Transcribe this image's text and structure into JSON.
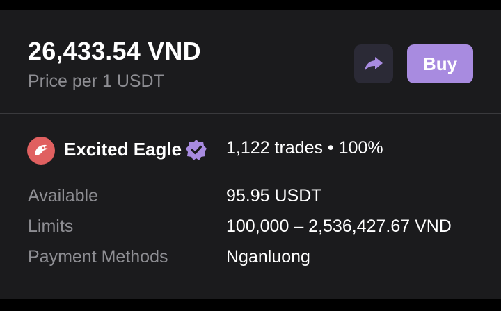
{
  "offer": {
    "price": "26,433.54 VND",
    "price_caption": "Price per 1 USDT",
    "buy_label": "Buy"
  },
  "merchant": {
    "name": "Excited Eagle",
    "stats": "1,122 trades • 100%"
  },
  "details": [
    {
      "label": "Available",
      "value": "95.95 USDT"
    },
    {
      "label": "Limits",
      "value": "100,000 – 2,536,427.67 VND"
    },
    {
      "label": "Payment Methods",
      "value": "Nganluong"
    }
  ],
  "icons": {
    "share": "share-arrow-icon",
    "avatar": "eagle-avatar-icon",
    "verified": "verified-badge-icon"
  },
  "colors": {
    "background": "#1b1b1d",
    "accent": "#a88be0",
    "avatar": "#e06060",
    "muted_text": "#8e8e93"
  }
}
